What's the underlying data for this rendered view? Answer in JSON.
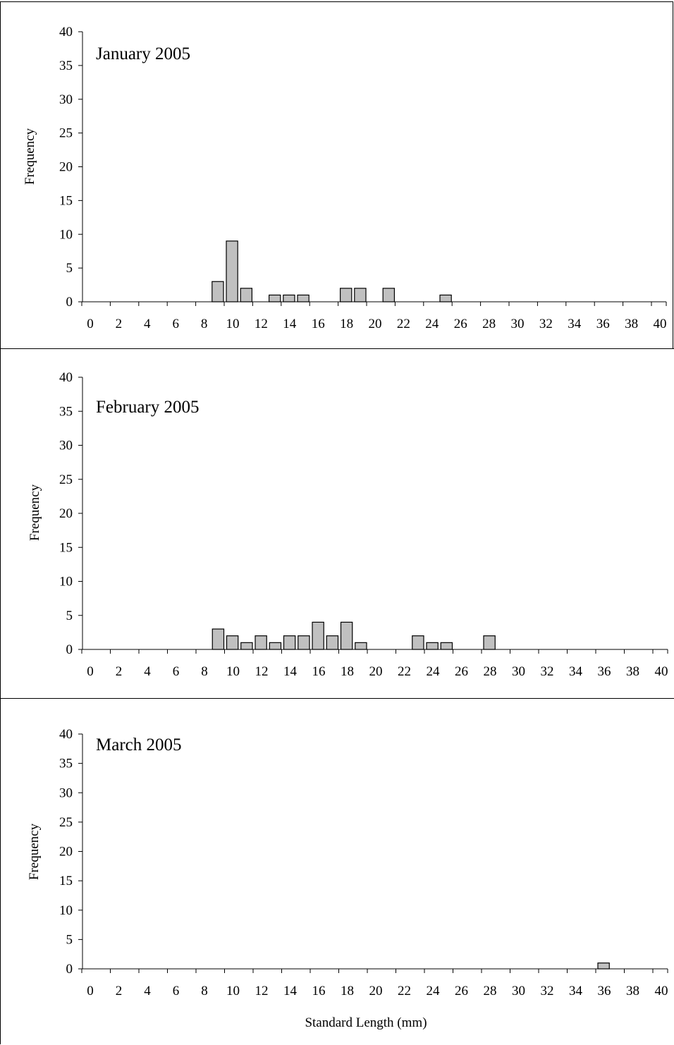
{
  "chart_data": [
    {
      "type": "bar",
      "title": "January 2005",
      "ylabel": "Frequency",
      "xlabel": "",
      "xlim": [
        0,
        40
      ],
      "ylim": [
        0,
        40
      ],
      "xticks": [
        0,
        2,
        4,
        6,
        8,
        10,
        12,
        14,
        16,
        18,
        20,
        22,
        24,
        26,
        28,
        30,
        32,
        34,
        36,
        38,
        40
      ],
      "yticks": [
        0,
        5,
        10,
        15,
        20,
        25,
        30,
        35,
        40
      ],
      "x": [
        9,
        10,
        11,
        13,
        14,
        15,
        18,
        19,
        21,
        25
      ],
      "values": [
        3,
        9,
        2,
        1,
        1,
        1,
        2,
        2,
        2,
        1
      ],
      "bar_color": "#c0c0c0"
    },
    {
      "type": "bar",
      "title": "February 2005",
      "ylabel": "Frequency",
      "xlabel": "",
      "xlim": [
        0,
        40
      ],
      "ylim": [
        0,
        40
      ],
      "xticks": [
        0,
        2,
        4,
        6,
        8,
        10,
        12,
        14,
        16,
        18,
        20,
        22,
        24,
        26,
        28,
        30,
        32,
        34,
        36,
        38,
        40
      ],
      "yticks": [
        0,
        5,
        10,
        15,
        20,
        25,
        30,
        35,
        40
      ],
      "x": [
        9,
        10,
        11,
        12,
        13,
        14,
        15,
        16,
        17,
        18,
        19,
        23,
        24,
        25,
        28
      ],
      "values": [
        3,
        2,
        1,
        2,
        1,
        2,
        2,
        4,
        2,
        4,
        1,
        2,
        1,
        1,
        2
      ],
      "bar_color": "#c0c0c0"
    },
    {
      "type": "bar",
      "title": "March 2005",
      "ylabel": "Frequency",
      "xlabel": "Standard Length (mm)",
      "xlim": [
        0,
        40
      ],
      "ylim": [
        0,
        40
      ],
      "xticks": [
        0,
        2,
        4,
        6,
        8,
        10,
        12,
        14,
        16,
        18,
        20,
        22,
        24,
        26,
        28,
        30,
        32,
        34,
        36,
        38,
        40
      ],
      "yticks": [
        0,
        5,
        10,
        15,
        20,
        25,
        30,
        35,
        40
      ],
      "x": [
        36
      ],
      "values": [
        1
      ],
      "bar_color": "#c0c0c0"
    }
  ]
}
